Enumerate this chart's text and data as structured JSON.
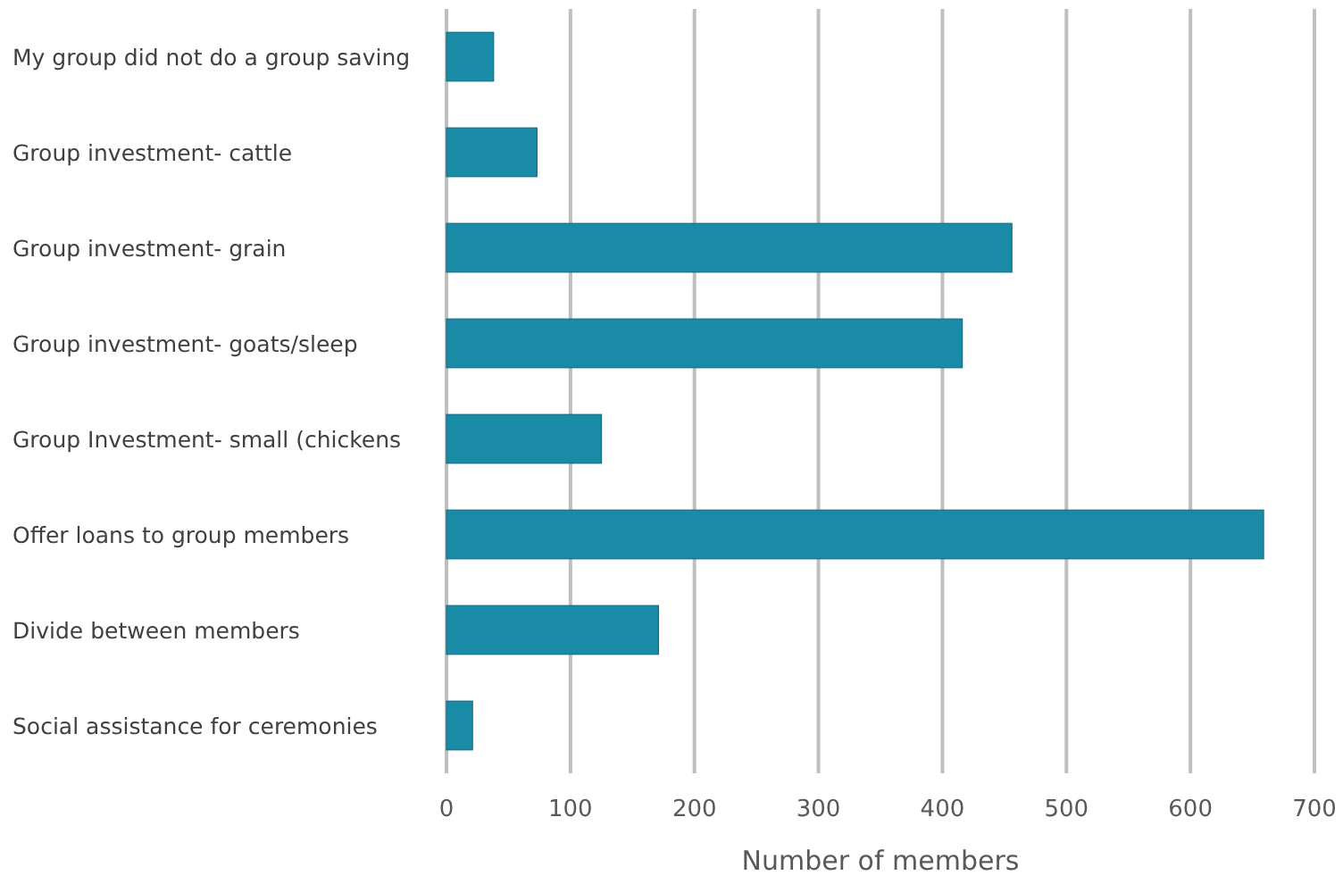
{
  "chart_data": {
    "type": "bar",
    "orientation": "horizontal",
    "xlabel": "Number of members",
    "categories": [
      "My group did not do a group saving",
      "Group investment- cattle",
      "Group investment- grain",
      "Group investment- goats/sleep",
      "Group Investment- small (chickens",
      "Offer loans to group members",
      "Divide between members",
      "Social assistance for ceremonies"
    ],
    "values": [
      38,
      73,
      456,
      416,
      125,
      659,
      171,
      21
    ],
    "color": "#1a8ba6",
    "xlim": [
      0,
      700
    ],
    "xticks": [
      0,
      100,
      200,
      300,
      400,
      500,
      600,
      700
    ],
    "grid": "x"
  }
}
